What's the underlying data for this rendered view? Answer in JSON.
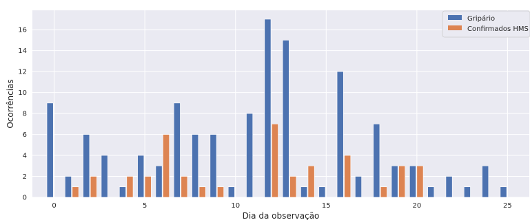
{
  "chart_data": {
    "type": "bar",
    "xlabel": "Dia da observação",
    "ylabel": "Ocorrências",
    "xlim": [
      -1.2,
      26.2
    ],
    "ylim": [
      0,
      17.85
    ],
    "xticks": [
      0,
      5,
      10,
      15,
      20,
      25
    ],
    "yticks": [
      0,
      2,
      4,
      6,
      8,
      10,
      12,
      14,
      16
    ],
    "grid": true,
    "background_color": "#EAEAF2",
    "legend_position": "top-right",
    "bar_width": 0.35,
    "series": [
      {
        "name": "Gripário",
        "color": "#4C72B0",
        "offset": -0.4,
        "x": [
          0,
          1,
          2,
          3,
          4,
          5,
          6,
          7,
          8,
          9,
          10,
          11,
          12,
          13,
          14,
          15,
          16,
          17,
          18,
          19,
          20,
          21,
          22,
          23,
          24,
          25
        ],
        "values": [
          9,
          2,
          6,
          4,
          1,
          4,
          3,
          9,
          6,
          6,
          1,
          8,
          17,
          15,
          1,
          1,
          12,
          2,
          7,
          3,
          3,
          1,
          2,
          1,
          3,
          1
        ]
      },
      {
        "name": "Confirmados HMS",
        "color": "#DD8452",
        "offset": 0,
        "x": [
          0,
          1,
          2,
          3,
          4,
          5,
          6,
          7,
          8,
          9,
          10,
          11,
          12,
          13,
          14,
          15,
          16,
          17,
          18,
          19,
          20,
          21,
          22,
          23,
          24,
          25
        ],
        "values": [
          0,
          1,
          2,
          0,
          2,
          2,
          6,
          2,
          1,
          1,
          0,
          0,
          7,
          2,
          3,
          0,
          4,
          0,
          1,
          3,
          3,
          0,
          0,
          0,
          0,
          0
        ]
      }
    ]
  }
}
